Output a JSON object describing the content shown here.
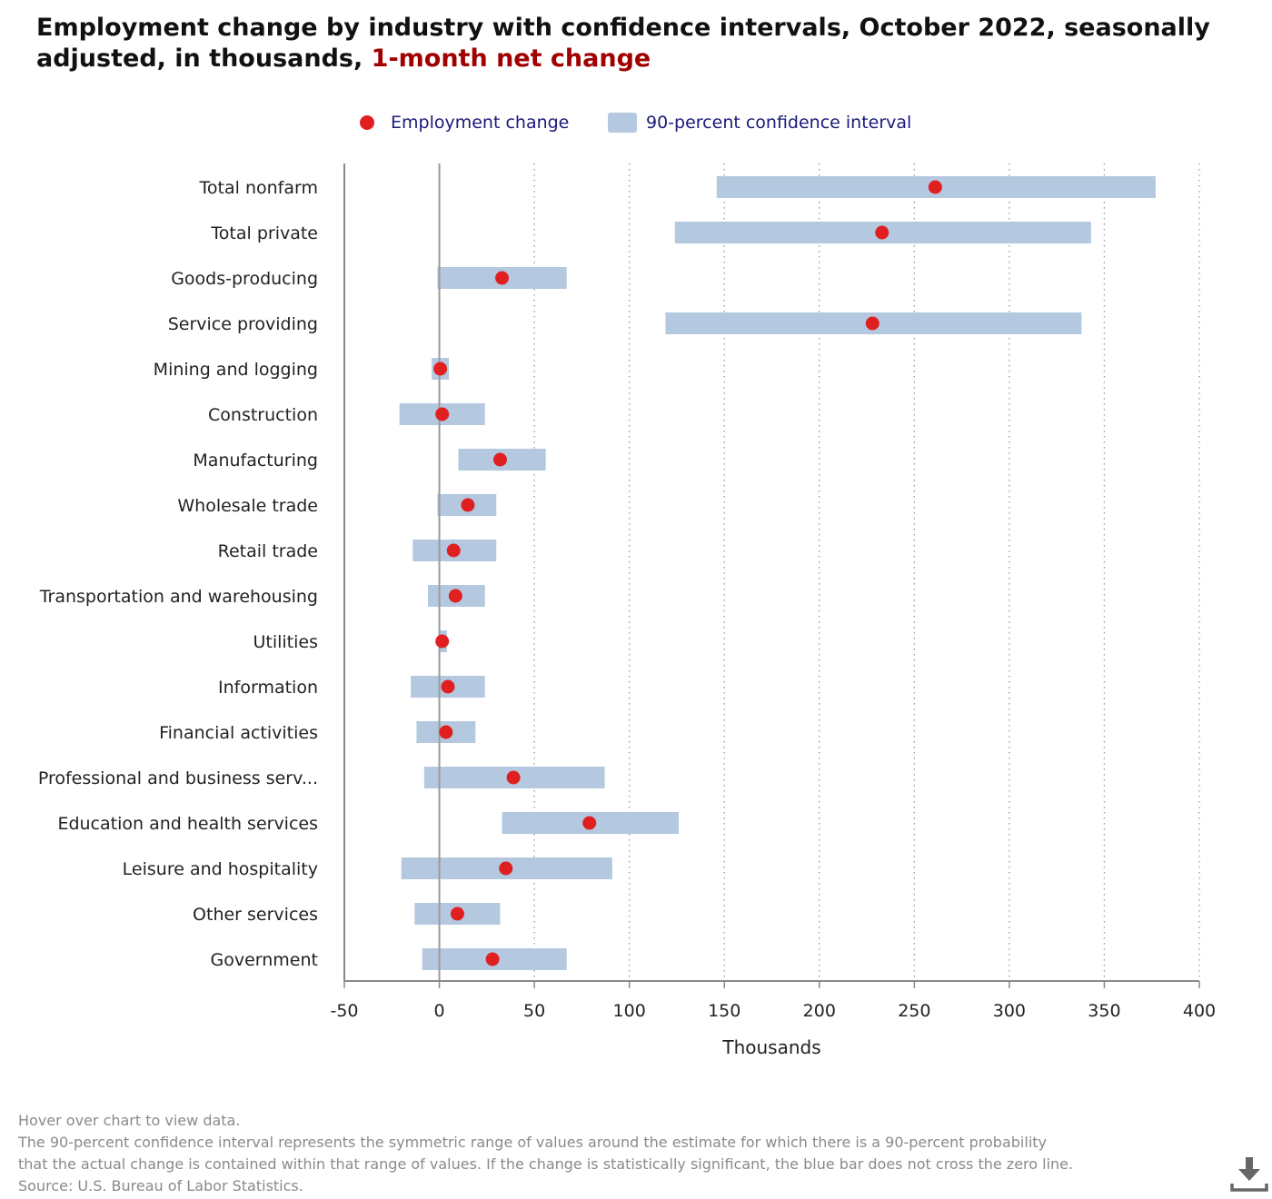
{
  "title": {
    "main": "Employment change by industry with confidence intervals, October 2022, seasonally adjusted, in thousands,",
    "highlight": "1-month net change"
  },
  "legend": {
    "dot_label": "Employment change",
    "box_label": "90-percent confidence interval"
  },
  "notes": {
    "hover": "Hover over chart to view data.",
    "ci_line1": "The 90-percent confidence interval represents the symmetric range of values around the estimate for which there is a 90-percent probability",
    "ci_line2": "that the actual change is contained within that range of values. If the change is statistically significant, the blue bar does not cross the zero line.",
    "source": "Source: U.S. Bureau of Labor Statistics."
  },
  "colors": {
    "dot": "#e02020",
    "interval": "#b4c8e0",
    "title_highlight": "#a00000",
    "legend_text": "#1a1a7a"
  },
  "icons": {
    "download": "download-icon"
  },
  "chart_data": {
    "type": "scatter",
    "xlabel": "Thousands",
    "xlim": [
      -50,
      400
    ],
    "xticks": [
      -50,
      0,
      50,
      100,
      150,
      200,
      250,
      300,
      350,
      400
    ],
    "grid": "vertical dotted",
    "legend_position": "top-center",
    "categories": [
      "Total nonfarm",
      "Total private",
      "Goods-producing",
      "Service providing",
      "Mining and logging",
      "Construction",
      "Manufacturing",
      "Wholesale trade",
      "Retail trade",
      "Transportation and warehousing",
      "Utilities",
      "Information",
      "Financial activities",
      "Professional and business serv...",
      "Education and health services",
      "Leisure and hospitality",
      "Other services",
      "Government"
    ],
    "series": [
      {
        "name": "Employment change",
        "values": [
          261,
          233,
          33,
          228,
          0.5,
          1.5,
          32,
          15,
          7.5,
          8.5,
          1.5,
          4.5,
          3.5,
          39,
          79,
          35,
          9.5,
          28
        ]
      },
      {
        "name": "90-percent confidence interval",
        "low": [
          146,
          124,
          -1,
          119,
          -4,
          -21,
          10,
          -1,
          -14,
          -6,
          -0.5,
          -15,
          -12,
          -8,
          33,
          -20,
          -13,
          -9
        ],
        "high": [
          377,
          343,
          67,
          338,
          5,
          24,
          56,
          30,
          30,
          24,
          4,
          24,
          19,
          87,
          126,
          91,
          32,
          67
        ]
      }
    ]
  }
}
